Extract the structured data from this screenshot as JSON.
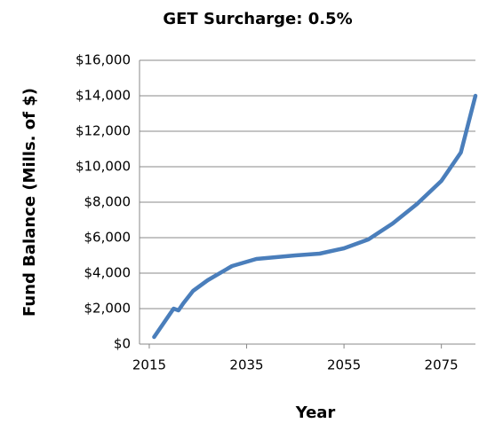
{
  "chart_data": {
    "type": "line",
    "title": "GET Surcharge: 0.5%",
    "x_label": "Year",
    "y_label": "Fund Balance (Mills. of $)",
    "x": [
      2016,
      2018,
      2020,
      2021,
      2022,
      2024,
      2027,
      2032,
      2037,
      2045,
      2050,
      2055,
      2060,
      2065,
      2070,
      2075,
      2079,
      2082
    ],
    "series": [
      {
        "name": "Fund Balance",
        "color": "#4a7ebb",
        "values": [
          400,
          1200,
          2000,
          1900,
          2300,
          3000,
          3600,
          4400,
          4800,
          5000,
          5100,
          5400,
          5900,
          6800,
          7900,
          9200,
          10800,
          14000
        ]
      }
    ],
    "xlim": [
      2013,
      2082
    ],
    "xticks": [
      2015,
      2035,
      2055,
      2075
    ],
    "ylim": [
      0,
      16000
    ],
    "yticks": [
      {
        "value": 0,
        "label": "$0"
      },
      {
        "value": 2000,
        "label": "$2,000"
      },
      {
        "value": 4000,
        "label": "$4,000"
      },
      {
        "value": 6000,
        "label": "$6,000"
      },
      {
        "value": 8000,
        "label": "$8,000"
      },
      {
        "value": 10000,
        "label": "$10,000"
      },
      {
        "value": 12000,
        "label": "$12,000"
      },
      {
        "value": 14000,
        "label": "$14,000"
      },
      {
        "value": 16000,
        "label": "$16,000"
      }
    ],
    "grid": true
  }
}
